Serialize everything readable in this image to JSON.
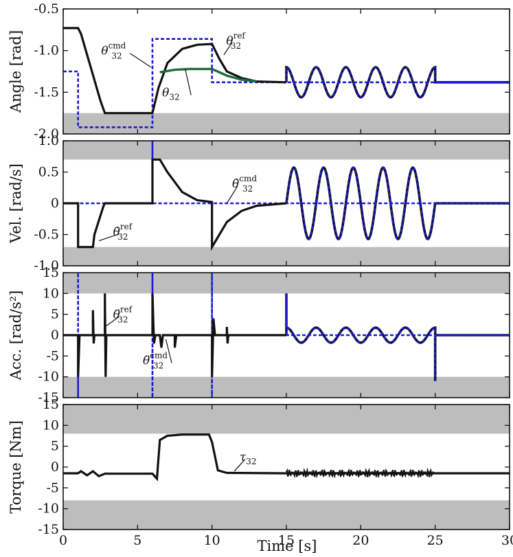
{
  "chart_data": [
    {
      "type": "line",
      "ylabel": "Angle [rad]",
      "ylim": [
        -2.0,
        -0.5
      ],
      "yticks": [
        "-0.5",
        "-1.0",
        "-1.5",
        "-2.0"
      ],
      "shaded_bands": [
        [
          -2.0,
          -1.75
        ]
      ],
      "annotations": [
        {
          "symbol": "θ",
          "sup": "cmd",
          "sub": "32",
          "tx": 3.2,
          "ty": -1.0,
          "ax": 5.9,
          "ay": -1.2
        },
        {
          "symbol": "θ",
          "sup": "ref",
          "sub": "32",
          "tx": 11.6,
          "ty": -0.88,
          "ax": 10.8,
          "ay": -1.05
        },
        {
          "symbol": "θ",
          "sup": "",
          "sub": "32",
          "tx": 7.3,
          "ty": -1.5,
          "ax": 8.2,
          "ay": -1.22
        }
      ],
      "series": [
        {
          "name": "cmd",
          "color": "#1a1ad6",
          "style": "dotted",
          "points": [
            [
              0,
              -1.25
            ],
            [
              1,
              -1.25
            ],
            [
              1,
              -1.92
            ],
            [
              6,
              -1.92
            ],
            [
              6,
              -0.86
            ],
            [
              10,
              -0.86
            ],
            [
              10,
              -1.38
            ],
            [
              15,
              -1.38
            ],
            [
              15,
              -1.38
            ],
            [
              25,
              -1.38
            ],
            [
              30,
              -1.38
            ]
          ]
        },
        {
          "name": "ref",
          "color": "#111111",
          "style": "solid",
          "points": [
            [
              0,
              -0.73
            ],
            [
              1,
              -0.73
            ],
            [
              1.2,
              -0.8
            ],
            [
              2.5,
              -1.6
            ],
            [
              2.8,
              -1.75
            ],
            [
              6,
              -1.75
            ],
            [
              6.4,
              -1.45
            ],
            [
              7,
              -1.15
            ],
            [
              8,
              -0.98
            ],
            [
              9,
              -0.93
            ],
            [
              10,
              -0.92
            ],
            [
              10.5,
              -1.1
            ],
            [
              11,
              -1.25
            ],
            [
              12,
              -1.33
            ],
            [
              13,
              -1.37
            ],
            [
              15,
              -1.38
            ]
          ]
        },
        {
          "name": "meas",
          "color": "#1e6b3a",
          "style": "solid",
          "points": [
            [
              6.5,
              -1.26
            ],
            [
              7.5,
              -1.23
            ],
            [
              8.5,
              -1.22
            ],
            [
              9.5,
              -1.22
            ],
            [
              10,
              -1.22
            ],
            [
              11,
              -1.3
            ],
            [
              12,
              -1.35
            ],
            [
              13,
              -1.37
            ]
          ]
        }
      ],
      "sine": {
        "t0": 15,
        "t1": 25,
        "center": -1.38,
        "amp": 0.18,
        "freq": 0.5,
        "tail_to": 30
      }
    },
    {
      "type": "line",
      "ylabel": "Vel. [rad/s]",
      "ylim": [
        -1.0,
        1.0
      ],
      "yticks": [
        "1.0",
        "0.5",
        "0",
        "-0.5",
        "-1.0"
      ],
      "shaded_bands": [
        [
          0.7,
          1.0
        ],
        [
          -1.0,
          -0.7
        ]
      ],
      "annotations": [
        {
          "symbol": "θ̇",
          "sup": "cmd",
          "sub": "32",
          "tx": 12.0,
          "ty": 0.32,
          "ax": 11.0,
          "ay": 0.0
        },
        {
          "symbol": "θ̇",
          "sup": "ref",
          "sub": "32",
          "tx": 4.0,
          "ty": -0.45,
          "ax": 2.4,
          "ay": -0.6
        }
      ],
      "series": [
        {
          "name": "cmd",
          "color": "#1a1ad6",
          "style": "dotted",
          "points": [
            [
              0,
              0
            ],
            [
              1,
              0
            ],
            [
              1,
              -0.7
            ],
            [
              1,
              0
            ],
            [
              6,
              0
            ],
            [
              6,
              1.0
            ],
            [
              6,
              0
            ],
            [
              10,
              0
            ],
            [
              10,
              -0.7
            ],
            [
              10,
              0
            ],
            [
              30,
              0
            ]
          ]
        },
        {
          "name": "ref",
          "color": "#111111",
          "style": "solid",
          "points": [
            [
              0,
              0
            ],
            [
              1,
              0
            ],
            [
              1,
              -0.7
            ],
            [
              2,
              -0.7
            ],
            [
              2.1,
              -0.5
            ],
            [
              2.7,
              -0.05
            ],
            [
              2.8,
              0
            ],
            [
              6,
              0
            ],
            [
              6,
              0.7
            ],
            [
              6.5,
              0.7
            ],
            [
              7,
              0.5
            ],
            [
              8,
              0.18
            ],
            [
              9,
              0.05
            ],
            [
              10,
              0.02
            ],
            [
              10,
              -0.7
            ],
            [
              10.5,
              -0.5
            ],
            [
              11,
              -0.3
            ],
            [
              12,
              -0.12
            ],
            [
              13,
              -0.04
            ],
            [
              15,
              0
            ]
          ]
        }
      ],
      "sine": {
        "t0": 15,
        "t1": 25,
        "center": 0.0,
        "amp": 0.57,
        "freq": 0.5,
        "tail_to": 30
      }
    },
    {
      "type": "line",
      "ylabel": "Acc. [rad/s²]",
      "ylim": [
        -15,
        15
      ],
      "yticks": [
        "15",
        "10",
        "5",
        "0",
        "-5",
        "-10",
        "-15"
      ],
      "shaded_bands": [
        [
          10,
          15
        ],
        [
          -15,
          -10
        ]
      ],
      "annotations": [
        {
          "symbol": "θ̈",
          "sup": "ref",
          "sub": "32",
          "tx": 4.0,
          "ty": 5.0,
          "ax": 2.8,
          "ay": 2.0
        },
        {
          "symbol": "θ̈",
          "sup": "cmd",
          "sub": "32",
          "tx": 6.0,
          "ty": -6.0,
          "ax": 6.9,
          "ay": -1.0
        }
      ],
      "series": [
        {
          "name": "cmd",
          "color": "#1a1ad6",
          "style": "dotted",
          "points": [
            [
              0,
              0
            ],
            [
              1,
              0
            ],
            [
              1,
              -15
            ],
            [
              1,
              15
            ],
            [
              1,
              0
            ],
            [
              6,
              0
            ],
            [
              6,
              15
            ],
            [
              6,
              -15
            ],
            [
              6,
              0
            ],
            [
              10,
              0
            ],
            [
              10,
              15
            ],
            [
              10,
              -15
            ],
            [
              10,
              0
            ],
            [
              30,
              0
            ]
          ]
        },
        {
          "name": "ref",
          "color": "#111111",
          "style": "solid",
          "points": [
            [
              0,
              0
            ],
            [
              1,
              0
            ],
            [
              1,
              -10
            ],
            [
              1.1,
              0
            ],
            [
              2,
              0
            ],
            [
              2,
              6
            ],
            [
              2.05,
              -2
            ],
            [
              2.1,
              0
            ],
            [
              2.8,
              0
            ],
            [
              2.8,
              10
            ],
            [
              2.85,
              -10
            ],
            [
              2.9,
              0
            ],
            [
              6,
              0
            ],
            [
              6,
              10
            ],
            [
              6.1,
              -2
            ],
            [
              6.2,
              0
            ],
            [
              6.5,
              0
            ],
            [
              6.6,
              -3
            ],
            [
              6.7,
              0
            ],
            [
              7.5,
              0
            ],
            [
              7.5,
              -3
            ],
            [
              7.6,
              0
            ],
            [
              10,
              0
            ],
            [
              10,
              -10
            ],
            [
              10.1,
              4
            ],
            [
              10.2,
              0
            ],
            [
              11,
              0
            ],
            [
              11,
              2
            ],
            [
              11.05,
              -2
            ],
            [
              11.1,
              0
            ],
            [
              15,
              0
            ]
          ]
        }
      ],
      "sine": {
        "t0": 15,
        "t1": 25,
        "center": 0.0,
        "amp": 1.8,
        "freq": 0.5,
        "tail_to": 30,
        "spike_start": 10,
        "spike_end": -11
      }
    },
    {
      "type": "line",
      "ylabel": "Torque [Nm]",
      "xlabel": "Time [s]",
      "xlim": [
        0,
        30
      ],
      "xticks": [
        "0",
        "5",
        "10",
        "15",
        "20",
        "25",
        "30"
      ],
      "ylim": [
        -15,
        15
      ],
      "yticks": [
        "15",
        "10",
        "5",
        "0",
        "-5",
        "-10",
        "-15"
      ],
      "shaded_bands": [
        [
          8,
          15
        ],
        [
          -15,
          -8
        ]
      ],
      "annotations": [
        {
          "symbol": "τ",
          "sup": "",
          "sub": "32",
          "tx": 12.5,
          "ty": 2.5,
          "ax": 11.5,
          "ay": -1.0
        }
      ],
      "series": [
        {
          "name": "tau",
          "color": "#111111",
          "style": "solid",
          "points": [
            [
              0,
              -1.5
            ],
            [
              1,
              -1.5
            ],
            [
              1.2,
              -1.0
            ],
            [
              1.6,
              -2.0
            ],
            [
              2.0,
              -1.0
            ],
            [
              2.4,
              -2.2
            ],
            [
              2.8,
              -1.6
            ],
            [
              6,
              -1.6
            ],
            [
              6.3,
              -2.8
            ],
            [
              6.5,
              6.5
            ],
            [
              7,
              7.5
            ],
            [
              8,
              7.8
            ],
            [
              9,
              7.8
            ],
            [
              9.8,
              7.8
            ],
            [
              10,
              6.0
            ],
            [
              10.4,
              -0.8
            ],
            [
              11,
              -1.4
            ],
            [
              15,
              -1.5
            ],
            [
              25,
              -1.5
            ],
            [
              30,
              -1.5
            ]
          ]
        }
      ],
      "noise": {
        "t0": 15,
        "t1": 25,
        "center": -1.5,
        "amp": 0.9
      }
    }
  ]
}
